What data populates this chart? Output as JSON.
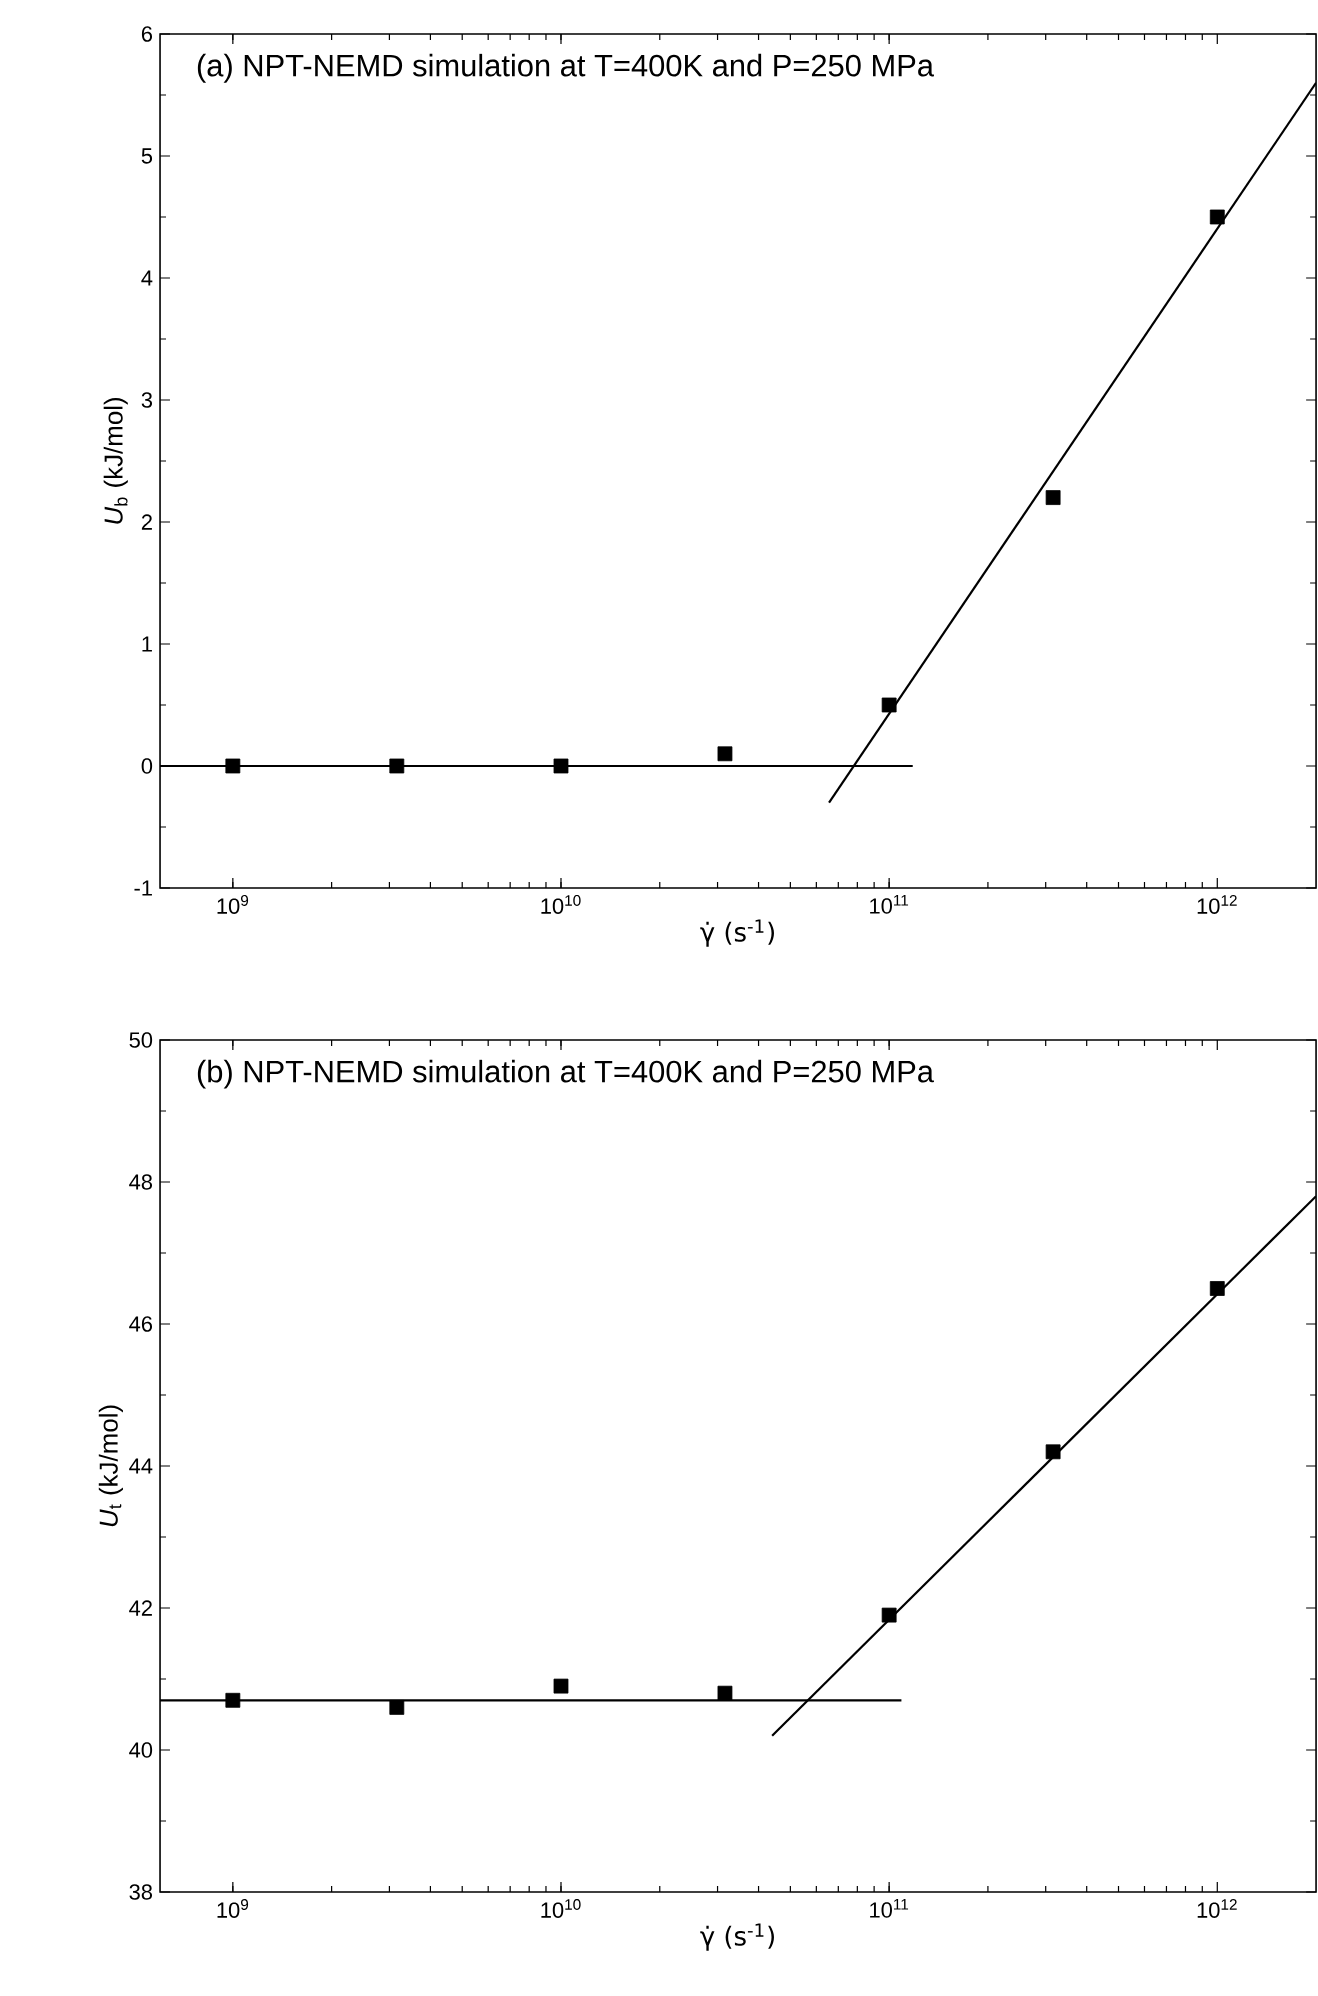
{
  "chart_data": [
    {
      "type": "scatter",
      "title": "(a) NPT-NEMD simulation at T=400K and P=250 MPa",
      "xlabel": "γ̇ (s$^{-1}$)",
      "ylabel": "*U*$_{b}$ (kJ/mol)",
      "log": "x",
      "xlim": [
        600000000.0,
        2000000000000.0
      ],
      "xticks": [
        {
          "value": 1000000000.0,
          "label": "10$^{9}$"
        },
        {
          "value": 10000000000.0,
          "label": "10$^{10}$"
        },
        {
          "value": 100000000000.0,
          "label": "10$^{11}$"
        },
        {
          "value": 1000000000000.0,
          "label": "10$^{12}$"
        }
      ],
      "ylim": [
        -1,
        6
      ],
      "yticks": [
        -1,
        0,
        1,
        2,
        3,
        4,
        5,
        6
      ],
      "series": [
        {
          "type": "scatter",
          "marker": "square",
          "color": "#000000",
          "x": [
            1000000000.0,
            3160000000.0,
            10000000000.0,
            31600000000.0,
            100000000000.0,
            316000000000.0,
            1000000000000.0
          ],
          "values": [
            0.0,
            0.0,
            0.0,
            0.1,
            0.5,
            2.2,
            4.5
          ]
        },
        {
          "type": "line",
          "color": "#000000",
          "x": [
            600000000.0,
            118000000000.0
          ],
          "values": [
            0.0,
            0.0
          ]
        },
        {
          "type": "line",
          "color": "#000000",
          "x": [
            65600000000.0,
            2000000000000.0
          ],
          "values": [
            -0.3,
            5.6
          ]
        }
      ]
    },
    {
      "type": "scatter",
      "title": "(b) NPT-NEMD simulation at T=400K and P=250 MPa",
      "xlabel": "γ̇ (s$^{-1}$)",
      "ylabel": "*U*$_{t}$ (kJ/mol)",
      "log": "x",
      "xlim": [
        600000000.0,
        2000000000000.0
      ],
      "xticks": [
        {
          "value": 1000000000.0,
          "label": "10$^{9}$"
        },
        {
          "value": 10000000000.0,
          "label": "10$^{10}$"
        },
        {
          "value": 100000000000.0,
          "label": "10$^{11}$"
        },
        {
          "value": 1000000000000.0,
          "label": "10$^{12}$"
        }
      ],
      "ylim": [
        38,
        50
      ],
      "yticks": [
        38,
        40,
        42,
        44,
        46,
        48,
        50
      ],
      "series": [
        {
          "type": "scatter",
          "marker": "square",
          "color": "#000000",
          "x": [
            1000000000.0,
            3160000000.0,
            10000000000.0,
            31600000000.0,
            100000000000.0,
            316000000000.0,
            1000000000000.0
          ],
          "values": [
            40.7,
            40.6,
            40.9,
            40.8,
            41.9,
            44.2,
            46.5
          ]
        },
        {
          "type": "line",
          "color": "#000000",
          "x": [
            600000000.0,
            109000000000.0
          ],
          "values": [
            40.7,
            40.7
          ]
        },
        {
          "type": "line",
          "color": "#000000",
          "x": [
            44000000000.0,
            2000000000000.0
          ],
          "values": [
            40.2,
            47.8
          ]
        }
      ]
    }
  ]
}
